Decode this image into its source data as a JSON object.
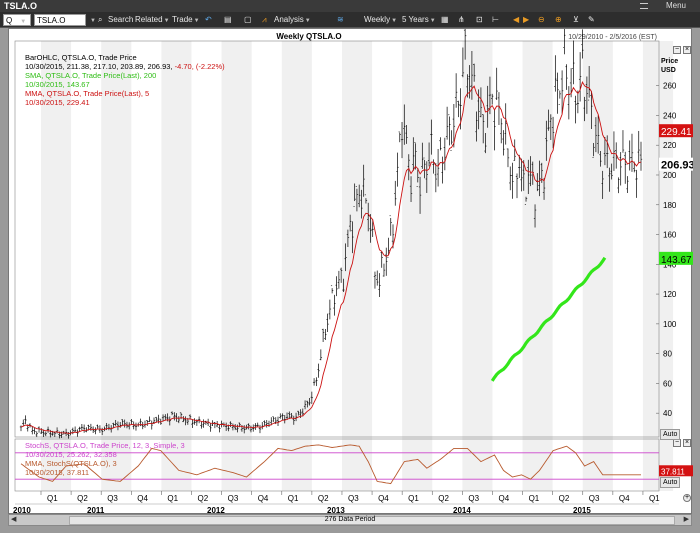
{
  "window": {
    "title": "TSLA.O",
    "menu_label": "Menu"
  },
  "toolbar": {
    "period_value": "Q",
    "symbol_value": "TSLA.O",
    "search": "Search",
    "related": "Related",
    "trade": "Trade",
    "analysis": "Analysis",
    "interval": "Weekly",
    "range": "5 Years"
  },
  "chart": {
    "title": "Weekly QTSLA.O",
    "date_range": "10/29/2010 - 2/5/2016 (EST)",
    "price_label": "Price",
    "price_unit": "USD",
    "auto": "Auto",
    "data_period": "276 Data Period",
    "legend_price": [
      "BarOHLC, QTSLA.O, Trade Price",
      "10/30/2015, 211.38, 217.10, 203.89, 206.93,",
      "-4.70, (-2.22%)",
      "SMA, QTSLA.O, Trade Price(Last), 200",
      "10/30/2015, 143.67",
      "MMA, QTSLA.O, Trade Price(Last), 5",
      "10/30/2015, 229.41"
    ],
    "legend_stoch": [
      "StochS, QTSLA.O, Trade Price, 12, 3, Simple, 3",
      "10/30/2015, 25.262, 32.358",
      "MMA, StochS(QTSLA.O), 3",
      "10/30/2015, 37.811"
    ],
    "badges": {
      "mma": "229.41",
      "last": "206.93",
      "sma": "143.67",
      "stoch": "37.811"
    },
    "colors": {
      "price": "#000000",
      "sma": "#33e61a",
      "mma": "#cc1111",
      "stoch": "#cc44cc",
      "stoch_mma": "#b85a2e",
      "band_shade": "#f0f0f0"
    }
  },
  "chart_data": {
    "type": "line",
    "title": "Weekly QTSLA.O",
    "ylabel": "Price USD",
    "ylim": [
      24,
      290
    ],
    "yticks": [
      40,
      60,
      80,
      100,
      120,
      140,
      160,
      180,
      200,
      220,
      240,
      260
    ],
    "quarters": [
      "Q1",
      "Q2",
      "Q3",
      "Q4",
      "Q1",
      "Q2",
      "Q3",
      "Q4",
      "Q1",
      "Q2",
      "Q3",
      "Q4",
      "Q1",
      "Q2",
      "Q3",
      "Q4",
      "Q1",
      "Q2",
      "Q3",
      "Q4",
      "Q1"
    ],
    "years": [
      "2010",
      "2011",
      "2012",
      "2013",
      "2014",
      "2015"
    ],
    "price_anchors": [
      [
        0,
        30
      ],
      [
        2,
        35
      ],
      [
        5,
        28
      ],
      [
        12,
        27
      ],
      [
        20,
        26
      ],
      [
        28,
        30
      ],
      [
        36,
        29
      ],
      [
        44,
        33
      ],
      [
        52,
        32
      ],
      [
        60,
        35
      ],
      [
        68,
        38
      ],
      [
        72,
        36
      ],
      [
        78,
        34
      ],
      [
        86,
        32
      ],
      [
        94,
        31
      ],
      [
        100,
        30
      ],
      [
        106,
        31
      ],
      [
        112,
        35
      ],
      [
        118,
        38
      ],
      [
        122,
        37
      ],
      [
        125,
        42
      ],
      [
        128,
        48
      ],
      [
        131,
        62
      ],
      [
        134,
        88
      ],
      [
        137,
        110
      ],
      [
        140,
        125
      ],
      [
        143,
        132
      ],
      [
        146,
        165
      ],
      [
        149,
        183
      ],
      [
        151,
        190
      ],
      [
        153,
        182
      ],
      [
        155,
        170
      ],
      [
        157,
        135
      ],
      [
        159,
        128
      ],
      [
        161,
        142
      ],
      [
        163,
        148
      ],
      [
        165,
        170
      ],
      [
        167,
        200
      ],
      [
        169,
        240
      ],
      [
        171,
        218
      ],
      [
        173,
        200
      ],
      [
        175,
        210
      ],
      [
        177,
        195
      ],
      [
        179,
        205
      ],
      [
        182,
        215
      ],
      [
        185,
        202
      ],
      [
        188,
        220
      ],
      [
        191,
        232
      ],
      [
        194,
        248
      ],
      [
        197,
        278
      ],
      [
        199,
        268
      ],
      [
        201,
        255
      ],
      [
        203,
        245
      ],
      [
        205,
        230
      ],
      [
        207,
        240
      ],
      [
        209,
        252
      ],
      [
        211,
        245
      ],
      [
        213,
        238
      ],
      [
        215,
        220
      ],
      [
        217,
        205
      ],
      [
        219,
        198
      ],
      [
        221,
        210
      ],
      [
        223,
        188
      ],
      [
        225,
        202
      ],
      [
        227,
        192
      ],
      [
        229,
        188
      ],
      [
        231,
        198
      ],
      [
        233,
        215
      ],
      [
        235,
        238
      ],
      [
        237,
        250
      ],
      [
        239,
        260
      ],
      [
        241,
        275
      ],
      [
        243,
        262
      ],
      [
        245,
        258
      ],
      [
        247,
        255
      ],
      [
        249,
        270
      ],
      [
        251,
        258
      ],
      [
        253,
        240
      ],
      [
        255,
        225
      ],
      [
        257,
        210
      ],
      [
        259,
        207
      ]
    ],
    "sma200": {
      "start_week": 209,
      "start": 62,
      "end_week": 259,
      "end": 144
    },
    "stoch_anchors": [
      [
        0,
        0.55
      ],
      [
        8,
        0.25
      ],
      [
        14,
        0.15
      ],
      [
        20,
        0.5
      ],
      [
        28,
        0.55
      ],
      [
        36,
        0.2
      ],
      [
        44,
        0.15
      ],
      [
        52,
        0.5
      ],
      [
        58,
        0.9
      ],
      [
        62,
        0.85
      ],
      [
        70,
        0.4
      ],
      [
        78,
        0.3
      ],
      [
        86,
        0.45
      ],
      [
        94,
        0.35
      ],
      [
        100,
        0.25
      ],
      [
        108,
        0.6
      ],
      [
        114,
        0.9
      ],
      [
        120,
        0.85
      ],
      [
        126,
        0.95
      ],
      [
        132,
        0.98
      ],
      [
        138,
        0.92
      ],
      [
        146,
        0.98
      ],
      [
        150,
        0.95
      ],
      [
        154,
        0.6
      ],
      [
        158,
        0.15
      ],
      [
        164,
        0.1
      ],
      [
        170,
        0.6
      ],
      [
        176,
        0.65
      ],
      [
        180,
        0.45
      ],
      [
        186,
        0.65
      ],
      [
        192,
        0.9
      ],
      [
        198,
        0.9
      ],
      [
        204,
        0.6
      ],
      [
        210,
        0.75
      ],
      [
        214,
        0.4
      ],
      [
        218,
        0.25
      ],
      [
        222,
        0.3
      ],
      [
        226,
        0.2
      ],
      [
        230,
        0.4
      ],
      [
        236,
        0.85
      ],
      [
        242,
        0.95
      ],
      [
        246,
        0.8
      ],
      [
        250,
        0.5
      ],
      [
        254,
        0.6
      ],
      [
        258,
        0.3
      ]
    ]
  }
}
